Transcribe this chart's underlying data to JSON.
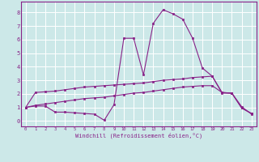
{
  "xlabel": "Windchill (Refroidissement éolien,°C)",
  "bg_color": "#cce8e8",
  "line_color": "#882288",
  "grid_color": "#ffffff",
  "xlim": [
    -0.5,
    23.5
  ],
  "ylim": [
    -0.4,
    8.8
  ],
  "xticks": [
    0,
    1,
    2,
    3,
    4,
    5,
    6,
    7,
    8,
    9,
    10,
    11,
    12,
    13,
    14,
    15,
    16,
    17,
    18,
    19,
    20,
    21,
    22,
    23
  ],
  "yticks": [
    0,
    1,
    2,
    3,
    4,
    5,
    6,
    7,
    8
  ],
  "line1_x": [
    0,
    1,
    2,
    3,
    4,
    5,
    6,
    7,
    8,
    9,
    10,
    11,
    12,
    13,
    14,
    15,
    16,
    17,
    18,
    19,
    20,
    21,
    22,
    23
  ],
  "line1_y": [
    1.0,
    1.1,
    1.1,
    0.65,
    0.65,
    0.6,
    0.55,
    0.5,
    0.05,
    1.2,
    6.1,
    6.1,
    3.4,
    7.2,
    8.2,
    7.9,
    7.5,
    6.1,
    3.9,
    3.3,
    2.1,
    2.05,
    1.05,
    0.5
  ],
  "line2_x": [
    0,
    1,
    2,
    3,
    4,
    5,
    6,
    7,
    8,
    9,
    10,
    11,
    12,
    13,
    14,
    15,
    16,
    17,
    18,
    19,
    20,
    21,
    22,
    23
  ],
  "line2_y": [
    1.0,
    2.1,
    2.15,
    2.2,
    2.3,
    2.4,
    2.5,
    2.55,
    2.6,
    2.65,
    2.7,
    2.75,
    2.8,
    2.9,
    3.0,
    3.05,
    3.1,
    3.2,
    3.25,
    3.3,
    2.05,
    2.05,
    0.95,
    0.55
  ],
  "line3_x": [
    0,
    1,
    2,
    3,
    4,
    5,
    6,
    7,
    8,
    9,
    10,
    11,
    12,
    13,
    14,
    15,
    16,
    17,
    18,
    19,
    20,
    21,
    22,
    23
  ],
  "line3_y": [
    1.0,
    1.15,
    1.25,
    1.35,
    1.45,
    1.55,
    1.65,
    1.7,
    1.75,
    1.85,
    1.95,
    2.05,
    2.1,
    2.2,
    2.3,
    2.4,
    2.5,
    2.55,
    2.6,
    2.6,
    2.1,
    2.05,
    0.95,
    0.55
  ]
}
